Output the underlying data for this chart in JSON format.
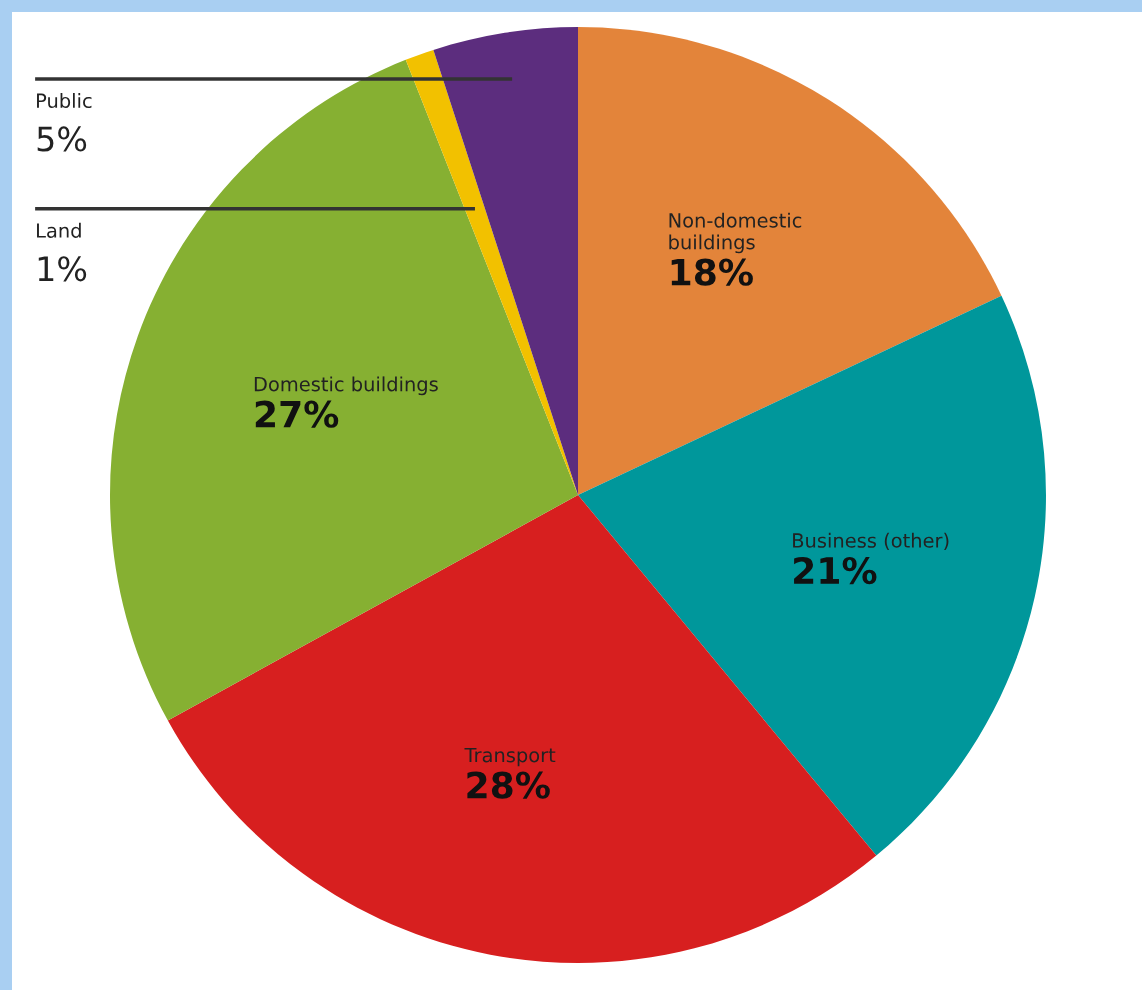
{
  "chart_data": {
    "type": "pie",
    "categories": [
      "Non-domestic\nbuildings",
      "Business (other)",
      "Transport",
      "Domestic buildings",
      "Land",
      "Public"
    ],
    "values": [
      18,
      21,
      28,
      27,
      1,
      5
    ],
    "value_labels": [
      "18%",
      "21%",
      "28%",
      "27%",
      "1%",
      "5%"
    ],
    "colors": [
      "#e3843a",
      "#00979b",
      "#d71f1f",
      "#86b032",
      "#f2c100",
      "#5c2d7e"
    ],
    "legend": false
  }
}
